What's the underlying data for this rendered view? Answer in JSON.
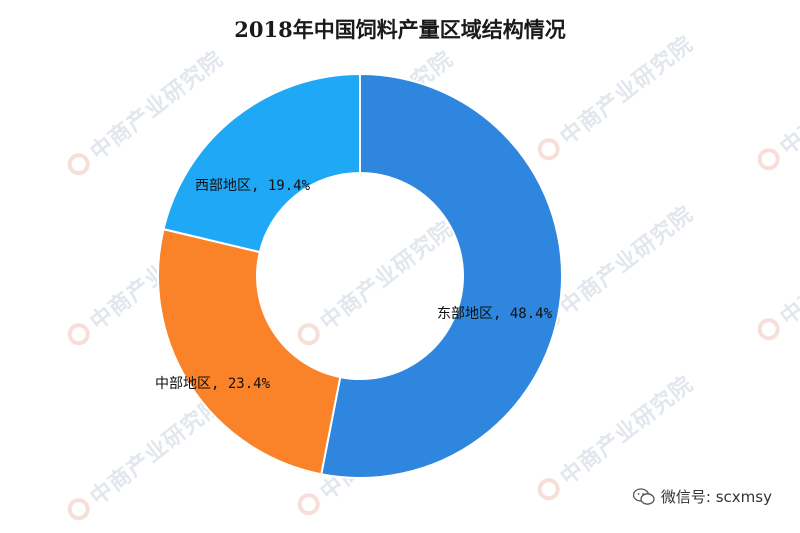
{
  "chart_data": {
    "type": "pie",
    "title": "2018年中国饲料产量区域结构情况",
    "donut": true,
    "slices": [
      {
        "label": "东部地区",
        "value": 48.4,
        "display": "东部地区, 48.4%",
        "color": "#2E86DE"
      },
      {
        "label": "中部地区",
        "value": 23.4,
        "display": "中部地区, 23.4%",
        "color": "#FA8228"
      },
      {
        "label": "西部地区",
        "value": 19.4,
        "display": "西部地区, 19.4%",
        "color": "#1EA8F5"
      }
    ]
  },
  "watermark": {
    "text": "中商产业研究院"
  },
  "footer": {
    "wechat_label": "微信号: scxmsy"
  }
}
